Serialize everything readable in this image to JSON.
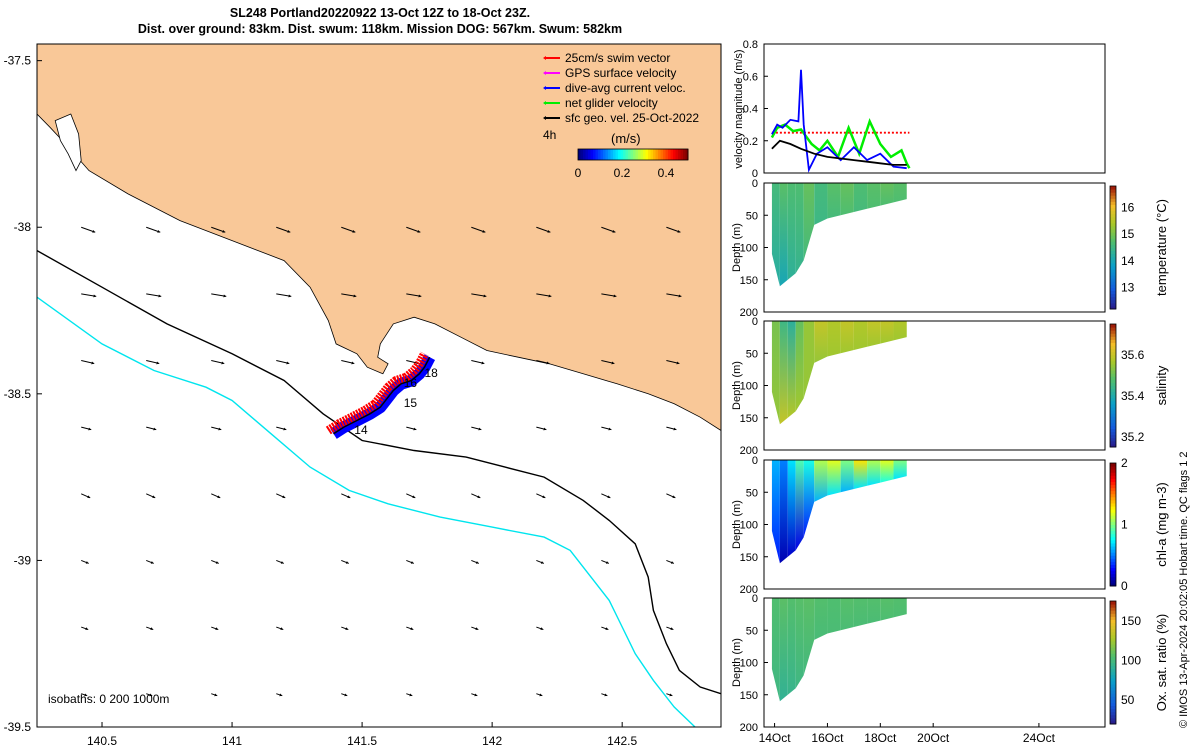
{
  "header": {
    "title_line1": "SL248 Portland20220922 13-Oct 12Z to 18-Oct 23Z.",
    "title_line2": "Dist. over ground: 83km. Dist. swum: 118km. Mission DOG: 567km. Swum: 582km"
  },
  "credit": "© IMOS 13-Apr-2024 20:02:05 Hobart time. QC flags 1  2",
  "colors": {
    "land": "#f9c898",
    "swim": "#ff0000",
    "gps": "#ff00ff",
    "dive_avg": "#0000ff",
    "net": "#00ee00",
    "sfc_geo": "#000000",
    "isobath_200": "#000000",
    "isobath_1000": "#00e5ee"
  },
  "chart_data": [
    {
      "type": "map",
      "name": "track_map",
      "xlim": [
        140.25,
        142.88
      ],
      "ylim": [
        -39.5,
        -37.45
      ],
      "x_ticks": [
        140.5,
        141,
        141.5,
        142,
        142.5
      ],
      "x_tick_labels": [
        "140.5",
        "141",
        "141.5",
        "142",
        "142.5"
      ],
      "y_ticks": [
        -37.5,
        -38,
        -38.5,
        -39,
        -39.5
      ],
      "y_tick_labels": [
        "-37.5",
        "-38",
        "-38.5",
        "-39",
        "-39.5"
      ],
      "legend": [
        {
          "label": "25cm/s swim vector",
          "color": "#ff0000"
        },
        {
          "label": "GPS surface velocity",
          "color": "#ff00ff"
        },
        {
          "label": "dive-avg current veloc.",
          "color": "#0000ff"
        },
        {
          "label": "net glider velocity",
          "color": "#00ee00"
        },
        {
          "label": "sfc geo. vel. 25-Oct-2022",
          "color": "#000000"
        }
      ],
      "legend_placement": "top-right",
      "colorbar": {
        "label": "(m/s)",
        "side_label": "4h",
        "ticks": [
          "0",
          "0.2",
          "0.4"
        ],
        "range": [
          0,
          0.5
        ]
      },
      "isobaths_label": "isobaths: 0   200  1000m",
      "day_labels": [
        {
          "text": "14",
          "lon": 141.47,
          "lat": -38.62
        },
        {
          "text": "15",
          "lon": 141.66,
          "lat": -38.54
        },
        {
          "text": "16",
          "lon": 141.66,
          "lat": -38.48
        },
        {
          "text": "18",
          "lon": 141.74,
          "lat": -38.45
        }
      ],
      "coast": [
        [
          140.25,
          -37.45
        ],
        [
          142.88,
          -37.45
        ],
        [
          142.88,
          -38.61
        ],
        [
          142.8,
          -38.57
        ],
        [
          142.7,
          -38.53
        ],
        [
          142.6,
          -38.5
        ],
        [
          142.48,
          -38.47
        ],
        [
          142.35,
          -38.44
        ],
        [
          142.22,
          -38.41
        ],
        [
          142.1,
          -38.39
        ],
        [
          141.98,
          -38.37
        ],
        [
          141.88,
          -38.33
        ],
        [
          141.78,
          -38.29
        ],
        [
          141.7,
          -38.27
        ],
        [
          141.62,
          -38.29
        ],
        [
          141.57,
          -38.35
        ],
        [
          141.56,
          -38.39
        ],
        [
          141.6,
          -38.41
        ],
        [
          141.58,
          -38.44
        ],
        [
          141.52,
          -38.42
        ],
        [
          141.48,
          -38.38
        ],
        [
          141.4,
          -38.35
        ],
        [
          141.37,
          -38.28
        ],
        [
          141.3,
          -38.18
        ],
        [
          141.2,
          -38.1
        ],
        [
          141.0,
          -38.04
        ],
        [
          140.8,
          -37.98
        ],
        [
          140.6,
          -37.9
        ],
        [
          140.45,
          -37.83
        ],
        [
          140.36,
          -37.75
        ],
        [
          140.3,
          -37.7
        ],
        [
          140.25,
          -37.66
        ]
      ],
      "island": [
        [
          140.32,
          -37.68
        ],
        [
          140.38,
          -37.66
        ],
        [
          140.41,
          -37.72
        ],
        [
          140.42,
          -37.8
        ],
        [
          140.4,
          -37.83
        ],
        [
          140.37,
          -37.78
        ],
        [
          140.34,
          -37.74
        ]
      ],
      "isobath_200": [
        [
          140.25,
          -38.07
        ],
        [
          140.5,
          -38.18
        ],
        [
          140.75,
          -38.29
        ],
        [
          141.0,
          -38.38
        ],
        [
          141.2,
          -38.46
        ],
        [
          141.35,
          -38.56
        ],
        [
          141.5,
          -38.64
        ],
        [
          141.7,
          -38.67
        ],
        [
          141.9,
          -38.69
        ],
        [
          142.05,
          -38.72
        ],
        [
          142.2,
          -38.75
        ],
        [
          142.35,
          -38.82
        ],
        [
          142.45,
          -38.88
        ],
        [
          142.55,
          -38.95
        ],
        [
          142.6,
          -39.05
        ],
        [
          142.62,
          -39.15
        ],
        [
          142.67,
          -39.25
        ],
        [
          142.72,
          -39.33
        ],
        [
          142.8,
          -39.38
        ],
        [
          142.88,
          -39.4
        ]
      ],
      "isobath_1000": [
        [
          140.25,
          -38.21
        ],
        [
          140.5,
          -38.35
        ],
        [
          140.7,
          -38.43
        ],
        [
          140.9,
          -38.48
        ],
        [
          141.0,
          -38.52
        ],
        [
          141.15,
          -38.62
        ],
        [
          141.3,
          -38.72
        ],
        [
          141.45,
          -38.79
        ],
        [
          141.6,
          -38.83
        ],
        [
          141.8,
          -38.87
        ],
        [
          142.0,
          -38.9
        ],
        [
          142.2,
          -38.93
        ],
        [
          142.3,
          -38.97
        ],
        [
          142.38,
          -39.05
        ],
        [
          142.45,
          -39.12
        ],
        [
          142.5,
          -39.2
        ],
        [
          142.55,
          -39.28
        ],
        [
          142.62,
          -39.36
        ],
        [
          142.7,
          -39.44
        ],
        [
          142.78,
          -39.5
        ]
      ],
      "track": [
        [
          141.39,
          -38.62
        ],
        [
          141.43,
          -38.6
        ],
        [
          141.48,
          -38.58
        ],
        [
          141.53,
          -38.56
        ],
        [
          141.57,
          -38.54
        ],
        [
          141.6,
          -38.51
        ],
        [
          141.62,
          -38.49
        ],
        [
          141.65,
          -38.47
        ],
        [
          141.69,
          -38.46
        ],
        [
          141.72,
          -38.44
        ],
        [
          141.74,
          -38.42
        ],
        [
          141.76,
          -38.39
        ]
      ],
      "surface_current_grid": {
        "lons": [
          140.42,
          140.67,
          140.92,
          141.17,
          141.42,
          141.67,
          141.92,
          142.17,
          142.42,
          142.67
        ],
        "lats": [
          -38.0,
          -38.2,
          -38.4,
          -38.6,
          -38.8,
          -39.0,
          -39.2,
          -39.4
        ],
        "u": [
          0.28,
          0.3,
          0.26,
          0.2,
          0.18,
          0.15,
          0.14,
          0.12
        ],
        "v": [
          -0.1,
          -0.05,
          -0.06,
          -0.05,
          -0.08,
          -0.06,
          -0.05,
          -0.04
        ]
      }
    },
    {
      "type": "line",
      "name": "velocity_magnitude",
      "ylabel": "velocity magnitude (m/s)",
      "xlim": [
        13.6,
        26.5
      ],
      "ylim": [
        0,
        0.8
      ],
      "y_ticks": [
        "0",
        "0.2",
        "0.4",
        "0.6",
        "0.8"
      ],
      "series": [
        {
          "color": "#ff0000",
          "dashed": true,
          "x": [
            13.9,
            19.1
          ],
          "y": [
            0.25,
            0.25
          ]
        },
        {
          "color": "#00ee00",
          "x": [
            13.9,
            14.1,
            14.4,
            14.7,
            15.0,
            15.4,
            15.7,
            16.0,
            16.4,
            16.8,
            17.2,
            17.6,
            18.0,
            18.4,
            18.8,
            19.0,
            19.1
          ],
          "y": [
            0.22,
            0.28,
            0.3,
            0.26,
            0.27,
            0.18,
            0.14,
            0.2,
            0.1,
            0.28,
            0.12,
            0.32,
            0.18,
            0.1,
            0.14,
            0.06,
            0.03
          ]
        },
        {
          "color": "#0000ff",
          "x": [
            13.9,
            14.1,
            14.3,
            14.6,
            14.9,
            15.0,
            15.1,
            15.3,
            15.6,
            16.0,
            16.5,
            17.0,
            17.5,
            18.0,
            18.5,
            19.0
          ],
          "y": [
            0.24,
            0.3,
            0.28,
            0.33,
            0.32,
            0.64,
            0.3,
            0.02,
            0.12,
            0.16,
            0.08,
            0.16,
            0.08,
            0.12,
            0.04,
            0.03
          ]
        },
        {
          "color": "#000000",
          "x": [
            13.9,
            14.2,
            14.6,
            15.0,
            15.5,
            16.0,
            16.5,
            17.0,
            17.5,
            18.0,
            18.5,
            19.0
          ],
          "y": [
            0.15,
            0.2,
            0.18,
            0.15,
            0.12,
            0.1,
            0.09,
            0.08,
            0.07,
            0.06,
            0.05,
            0.05
          ]
        }
      ]
    },
    {
      "type": "heatmap",
      "name": "temperature_section",
      "ylabel": "Depth (m)",
      "colorbar_label": "temperature (°C)",
      "colorbar_ticks": [
        "13",
        "14",
        "15",
        "16"
      ],
      "color_range": [
        12.2,
        16.8
      ],
      "ylim": [
        0,
        200
      ],
      "y_ticks": [
        "0",
        "50",
        "100",
        "150",
        "200"
      ],
      "x_days": [
        13.9,
        14.2,
        14.5,
        14.8,
        15.1,
        15.5,
        16.0,
        16.5,
        17.0,
        17.5,
        18.0,
        18.5,
        19.0
      ],
      "max_depth": [
        110,
        160,
        150,
        140,
        120,
        65,
        55,
        50,
        45,
        40,
        35,
        30,
        25
      ],
      "surface_value": [
        14.6,
        14.8,
        14.7,
        14.7,
        14.9,
        14.6,
        14.8,
        14.9,
        14.7,
        14.8,
        14.9,
        14.8,
        14.8
      ],
      "bottom_value": [
        14.2,
        14.0,
        14.3,
        14.4,
        14.6,
        14.5,
        14.6,
        14.7,
        14.6,
        14.7,
        14.7,
        14.7,
        14.7
      ]
    },
    {
      "type": "heatmap",
      "name": "salinity_section",
      "ylabel": "Depth (m)",
      "colorbar_label": "salinity",
      "colorbar_ticks": [
        "35.2",
        "35.4",
        "35.6"
      ],
      "color_range": [
        35.15,
        35.75
      ],
      "ylim": [
        0,
        200
      ],
      "y_ticks": [
        "0",
        "50",
        "100",
        "150",
        "200"
      ],
      "x_days": [
        13.9,
        14.2,
        14.5,
        14.8,
        15.1,
        15.5,
        16.0,
        16.5,
        17.0,
        17.5,
        18.0,
        18.5,
        19.0
      ],
      "max_depth": [
        110,
        160,
        150,
        140,
        120,
        65,
        55,
        50,
        45,
        40,
        35,
        30,
        25
      ],
      "surface_value": [
        35.52,
        35.45,
        35.42,
        35.5,
        35.55,
        35.6,
        35.58,
        35.6,
        35.58,
        35.6,
        35.6,
        35.58,
        35.58
      ],
      "bottom_value": [
        35.55,
        35.6,
        35.58,
        35.56,
        35.55,
        35.55,
        35.56,
        35.56,
        35.56,
        35.56,
        35.56,
        35.56,
        35.56
      ]
    },
    {
      "type": "heatmap",
      "name": "chla_section",
      "ylabel": "Depth (m)",
      "colorbar_label": "chl-a (mg m-3)",
      "colorbar_ticks": [
        "0",
        "1",
        "2"
      ],
      "color_range": [
        0,
        2
      ],
      "ylim": [
        0,
        200
      ],
      "y_ticks": [
        "0",
        "50",
        "100",
        "150",
        "200"
      ],
      "x_days": [
        13.9,
        14.2,
        14.5,
        14.8,
        15.1,
        15.5,
        16.0,
        16.5,
        17.0,
        17.5,
        18.0,
        18.5,
        19.0
      ],
      "max_depth": [
        110,
        160,
        150,
        140,
        120,
        65,
        55,
        50,
        45,
        40,
        35,
        30,
        25
      ],
      "surface_value": [
        0.6,
        0.5,
        0.7,
        0.9,
        0.8,
        1.1,
        1.2,
        1.0,
        1.3,
        1.1,
        1.2,
        1.0,
        1.1
      ],
      "bottom_value": [
        0.3,
        0.1,
        0.15,
        0.2,
        0.3,
        0.6,
        0.7,
        0.6,
        0.7,
        0.7,
        0.8,
        0.7,
        0.8
      ]
    },
    {
      "type": "heatmap",
      "name": "oxygen_section",
      "ylabel": "Depth (m)",
      "colorbar_label": "Ox. sat. ratio (%)",
      "colorbar_ticks": [
        "50",
        "100",
        "150"
      ],
      "color_range": [
        20,
        175
      ],
      "ylim": [
        0,
        200
      ],
      "y_ticks": [
        "0",
        "50",
        "100",
        "150",
        "200"
      ],
      "x_days": [
        13.9,
        14.2,
        14.5,
        14.8,
        15.1,
        15.5,
        16.0,
        16.5,
        17.0,
        17.5,
        18.0,
        18.5,
        19.0
      ],
      "max_depth": [
        110,
        160,
        150,
        140,
        120,
        65,
        55,
        50,
        45,
        40,
        35,
        30,
        25
      ],
      "surface_value": [
        105,
        108,
        106,
        107,
        108,
        106,
        105,
        107,
        106,
        106,
        107,
        106,
        106
      ],
      "bottom_value": [
        98,
        92,
        95,
        98,
        100,
        102,
        103,
        103,
        103,
        103,
        104,
        104,
        104
      ]
    },
    {
      "type": "axis",
      "name": "time_axis",
      "x_ticks": [
        14,
        16,
        18,
        20,
        24
      ],
      "x_tick_labels": [
        "14Oct",
        "16Oct",
        "18Oct",
        "20Oct",
        "24Oct"
      ]
    }
  ]
}
